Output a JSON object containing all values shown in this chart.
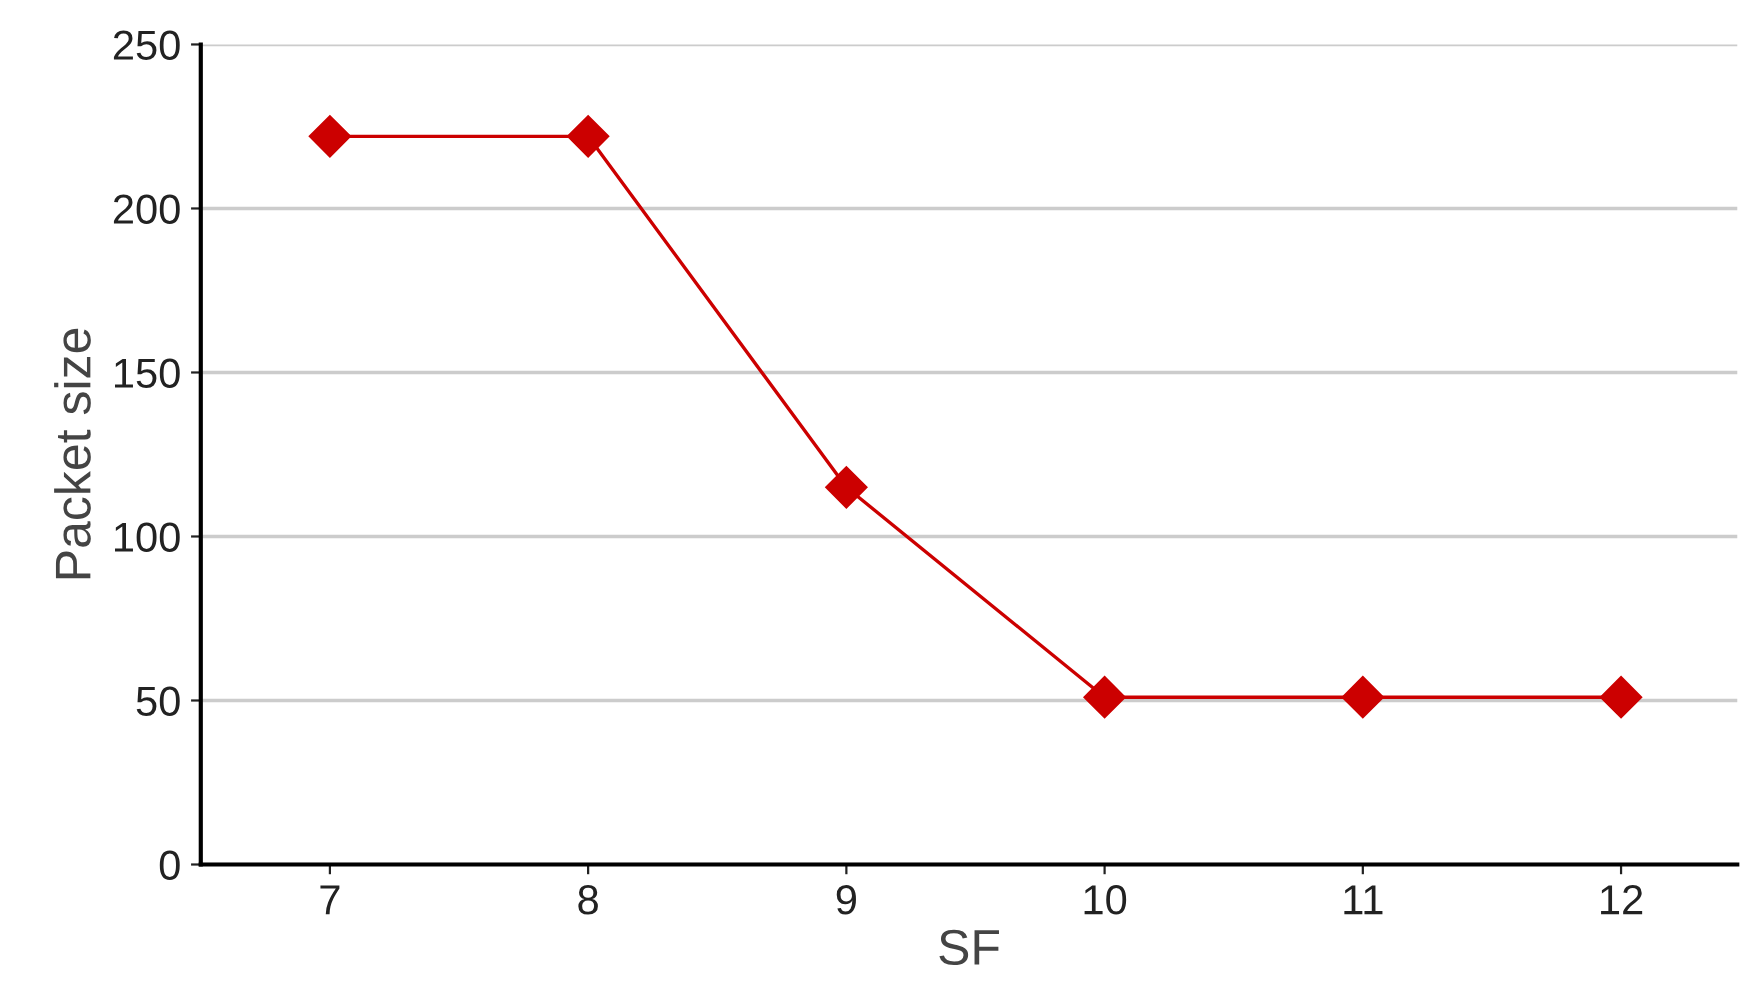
{
  "chart_data": {
    "type": "line",
    "xlabel": "SF",
    "ylabel": "Packet size",
    "categories": [
      "7",
      "8",
      "9",
      "10",
      "11",
      "12"
    ],
    "series": [
      {
        "color": "#cc0000",
        "values": [
          222,
          222,
          115,
          51,
          51,
          51
        ]
      }
    ],
    "ylim": [
      0,
      250
    ],
    "yticks": [
      0,
      50,
      100,
      150,
      200,
      250
    ],
    "grid": "y",
    "marker": "diamond",
    "line_style": "solid"
  }
}
